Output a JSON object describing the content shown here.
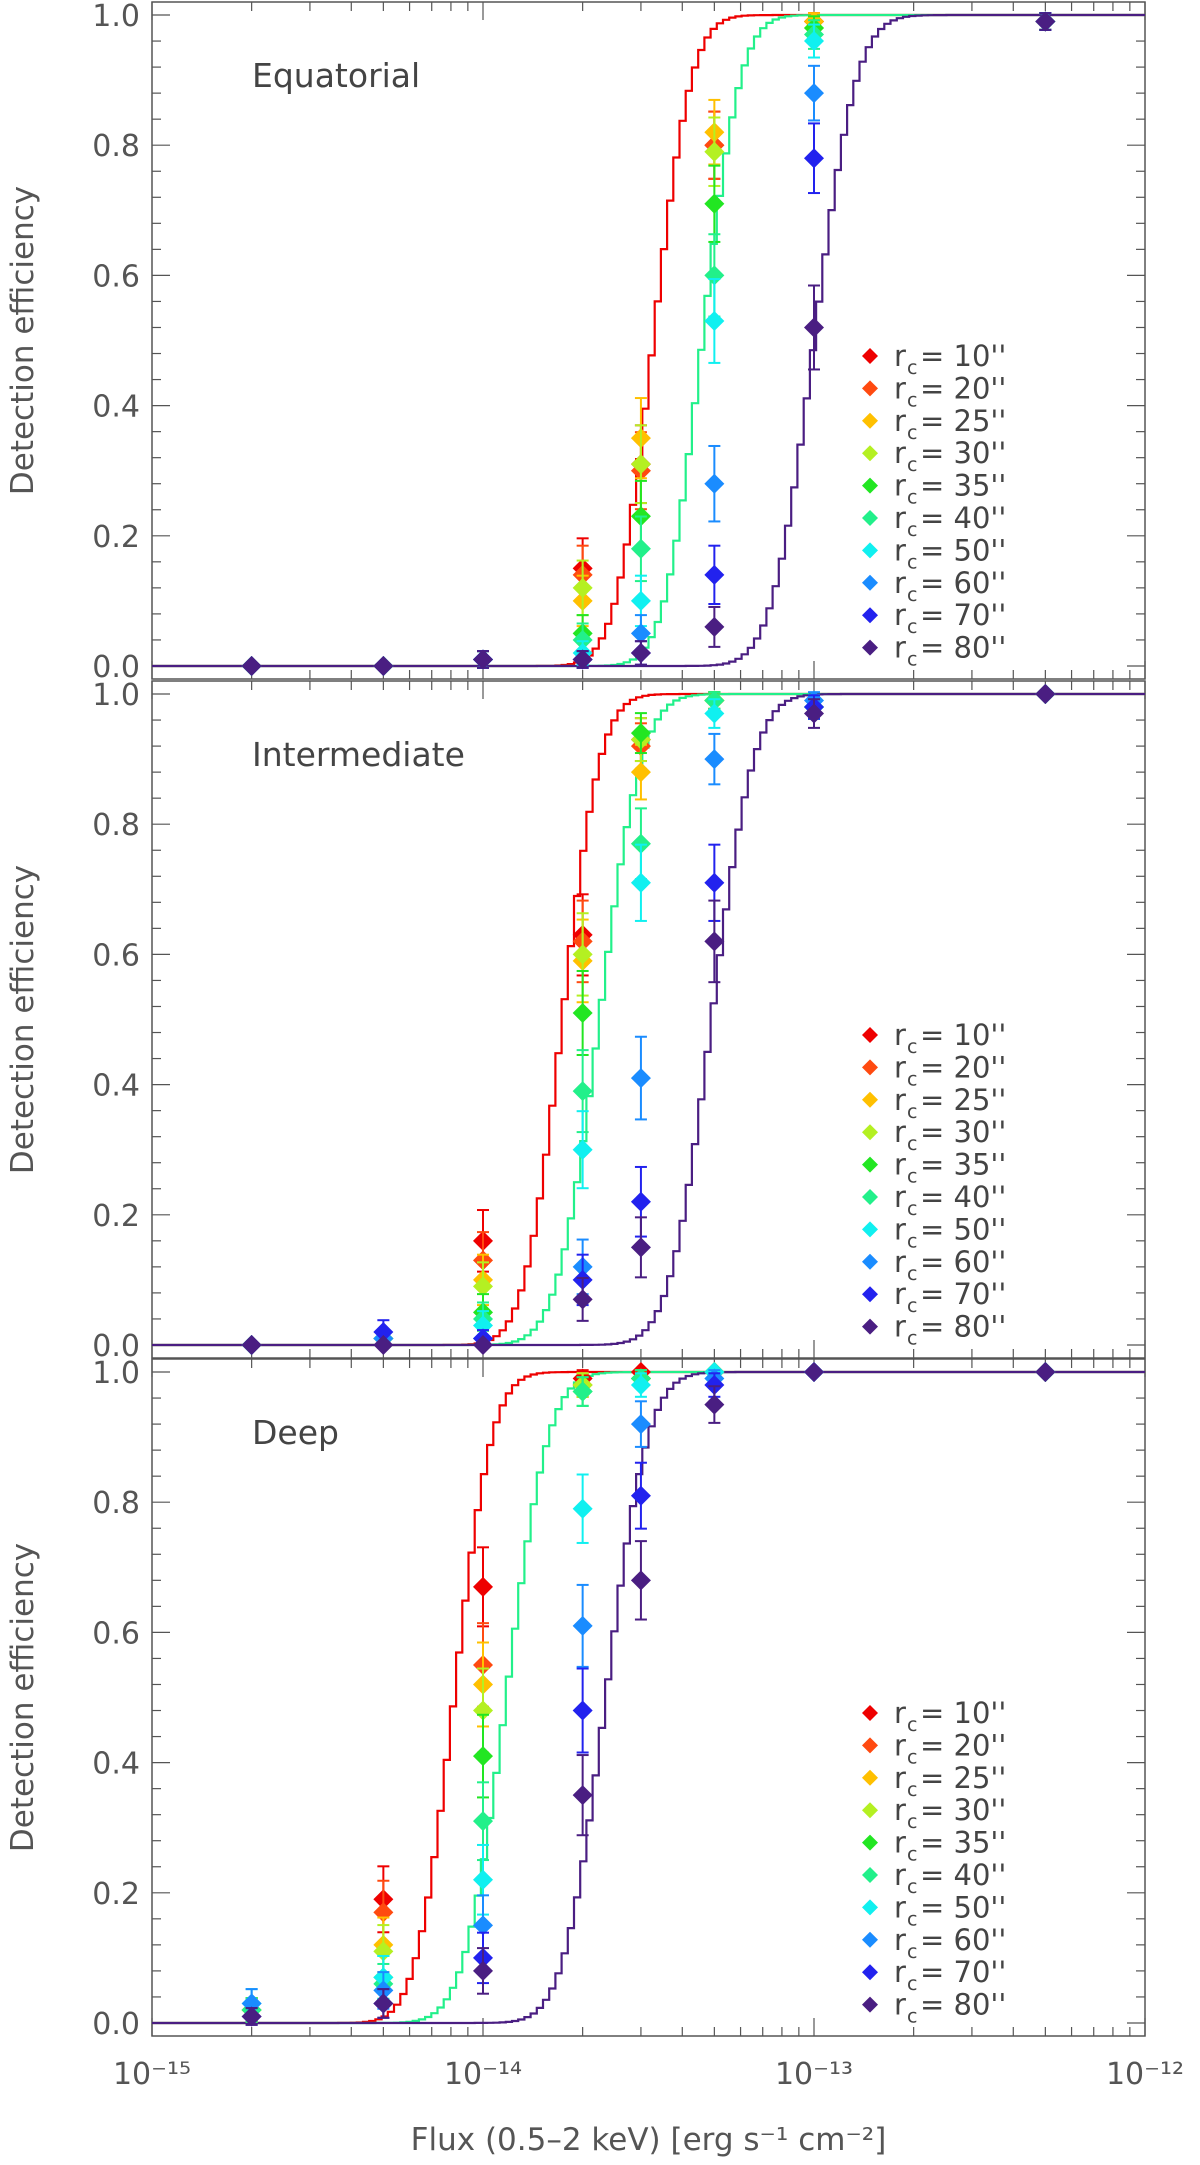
{
  "chart_data": {
    "type": "line",
    "xlabel": "Flux (0.5–2 keV) [erg s⁻¹ cm⁻²]",
    "ylabel": "Detection efficiency",
    "xscale": "log",
    "xlim": [
      1e-15,
      1e-12
    ],
    "ylim": [
      -0.02,
      1.02
    ],
    "x_tick_labels": [
      "10⁻¹⁵",
      "10⁻¹⁴",
      "10⁻¹³",
      "10⁻¹²"
    ],
    "y_tick_labels": [
      "0.0",
      "0.2",
      "0.4",
      "0.6",
      "0.8",
      "1.0"
    ],
    "legend_position": "lower-right",
    "legend_prefix": "r",
    "legend_sub": "c",
    "flux_points": [
      2e-15,
      5e-15,
      1e-14,
      2e-14,
      3e-14,
      5e-14,
      1e-13,
      5e-13
    ],
    "series": [
      {
        "name": "10''",
        "label": "= 10''",
        "color": "#ee0000"
      },
      {
        "name": "20''",
        "label": "= 20''",
        "color": "#ff4a10"
      },
      {
        "name": "25''",
        "label": "= 25''",
        "color": "#ffc000"
      },
      {
        "name": "30''",
        "label": "= 30''",
        "color": "#b4f022"
      },
      {
        "name": "35''",
        "label": "= 35''",
        "color": "#22e622"
      },
      {
        "name": "40''",
        "label": "= 40''",
        "color": "#22f08a"
      },
      {
        "name": "50''",
        "label": "= 50''",
        "color": "#10f0f0"
      },
      {
        "name": "60''",
        "label": "= 60''",
        "color": "#1a8cff"
      },
      {
        "name": "70''",
        "label": "= 70''",
        "color": "#2222ee"
      },
      {
        "name": "80''",
        "label": "= 80''",
        "color": "#4a1e82"
      }
    ],
    "panels": [
      {
        "title": "Equatorial",
        "model_curves": [
          {
            "series": "10''",
            "color": "#ee0000",
            "midpoint_flux": 3.2e-14,
            "width_dex": 0.09
          },
          {
            "series": "40''",
            "color": "#22f08a",
            "midpoint_flux": 4.5e-14,
            "width_dex": 0.09
          },
          {
            "series": "80''",
            "color": "#4a1e82",
            "midpoint_flux": 9.8e-14,
            "width_dex": 0.1
          }
        ],
        "points": {
          "10''": [
            0,
            0,
            0.01,
            0.15,
            0.31,
            0.8,
            0.99,
            0.99
          ],
          "20''": [
            0,
            0,
            0.01,
            0.14,
            0.3,
            0.8,
            0.99,
            0.99
          ],
          "25''": [
            0,
            0,
            0.01,
            0.1,
            0.35,
            0.82,
            0.99,
            0.99
          ],
          "30''": [
            0,
            0,
            0.01,
            0.12,
            0.31,
            0.79,
            0.98,
            0.99
          ],
          "35''": [
            0,
            0,
            0.01,
            0.05,
            0.23,
            0.71,
            0.98,
            0.99
          ],
          "40''": [
            0,
            0,
            0.01,
            0.04,
            0.18,
            0.6,
            0.97,
            0.99
          ],
          "50''": [
            0,
            0,
            0.01,
            0.02,
            0.1,
            0.53,
            0.96,
            0.99
          ],
          "60''": [
            0,
            0,
            0.01,
            0.01,
            0.05,
            0.28,
            0.88,
            0.99
          ],
          "70''": [
            0,
            0,
            0.01,
            0.01,
            0.02,
            0.14,
            0.78,
            0.99
          ],
          "80''": [
            0,
            0,
            0.01,
            0.01,
            0.02,
            0.06,
            0.52,
            0.99
          ]
        }
      },
      {
        "title": "Intermediate",
        "model_curves": [
          {
            "series": "10''",
            "color": "#ee0000",
            "midpoint_flux": 1.7e-14,
            "width_dex": 0.09
          },
          {
            "series": "40''",
            "color": "#22f08a",
            "midpoint_flux": 2.2e-14,
            "width_dex": 0.1
          },
          {
            "series": "80''",
            "color": "#4a1e82",
            "midpoint_flux": 4.8e-14,
            "width_dex": 0.1
          }
        ],
        "points": {
          "10''": [
            0,
            0.01,
            0.16,
            0.63,
            0.93,
            0.99,
            0.98,
            1.0
          ],
          "20''": [
            0,
            0.01,
            0.13,
            0.62,
            0.92,
            0.99,
            0.98,
            1.0
          ],
          "25''": [
            0,
            0.01,
            0.1,
            0.59,
            0.88,
            0.99,
            0.98,
            1.0
          ],
          "30''": [
            0,
            0.01,
            0.09,
            0.6,
            0.93,
            0.99,
            0.98,
            1.0
          ],
          "35''": [
            0,
            0.01,
            0.05,
            0.51,
            0.94,
            0.99,
            0.98,
            1.0
          ],
          "40''": [
            0,
            0.01,
            0.04,
            0.39,
            0.77,
            0.99,
            0.98,
            1.0
          ],
          "50''": [
            0,
            0.01,
            0.03,
            0.3,
            0.71,
            0.97,
            0.98,
            1.0
          ],
          "60''": [
            0,
            0.01,
            0.01,
            0.12,
            0.41,
            0.9,
            0.99,
            1.0
          ],
          "70''": [
            0,
            0.02,
            0.01,
            0.1,
            0.22,
            0.71,
            0.98,
            1.0
          ],
          "80''": [
            0,
            0,
            0,
            0.07,
            0.15,
            0.62,
            0.97,
            1.0
          ]
        }
      },
      {
        "title": "Deep",
        "model_curves": [
          {
            "series": "10''",
            "color": "#ee0000",
            "midpoint_flux": 8e-15,
            "width_dex": 0.09
          },
          {
            "series": "40''",
            "color": "#22f08a",
            "midpoint_flux": 1.15e-14,
            "width_dex": 0.1
          },
          {
            "series": "80''",
            "color": "#4a1e82",
            "midpoint_flux": 2.3e-14,
            "width_dex": 0.1
          }
        ],
        "points": {
          "10''": [
            0.02,
            0.19,
            0.67,
            0.99,
            1.0,
            1.0,
            1.0,
            1.0
          ],
          "20''": [
            0.02,
            0.17,
            0.55,
            0.98,
            0.99,
            1.0,
            1.0,
            1.0
          ],
          "25''": [
            0.02,
            0.12,
            0.52,
            0.98,
            0.99,
            1.0,
            1.0,
            1.0
          ],
          "30''": [
            0.02,
            0.11,
            0.48,
            0.98,
            0.99,
            1.0,
            1.0,
            1.0
          ],
          "35''": [
            0.02,
            0.07,
            0.41,
            0.97,
            0.99,
            1.0,
            1.0,
            1.0
          ],
          "40''": [
            0.02,
            0.06,
            0.31,
            0.97,
            0.99,
            1.0,
            1.0,
            1.0
          ],
          "50''": [
            0.03,
            0.07,
            0.22,
            0.79,
            0.98,
            1.0,
            1.0,
            1.0
          ],
          "60''": [
            0.03,
            0.05,
            0.15,
            0.61,
            0.92,
            0.99,
            1.0,
            1.0
          ],
          "70''": [
            0.01,
            0.03,
            0.1,
            0.48,
            0.81,
            0.98,
            1.0,
            1.0
          ],
          "80''": [
            0.01,
            0.03,
            0.08,
            0.35,
            0.68,
            0.95,
            1.0,
            1.0
          ]
        }
      }
    ]
  }
}
